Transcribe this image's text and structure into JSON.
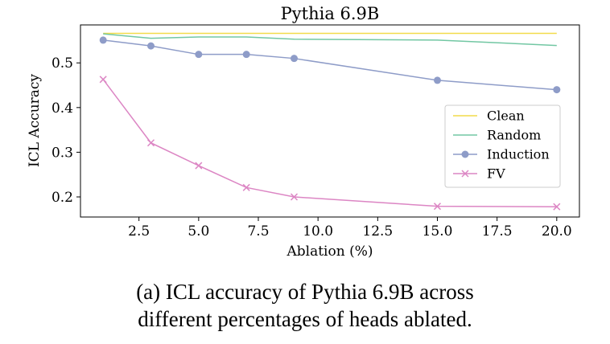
{
  "chart_data": {
    "type": "line",
    "title": "Pythia 6.9B",
    "xlabel": "Ablation (%)",
    "ylabel": "ICL Accuracy",
    "xlim": [
      0.05,
      20.95
    ],
    "ylim": [
      0.155,
      0.585
    ],
    "xticks": [
      2.5,
      5.0,
      7.5,
      10.0,
      12.5,
      15.0,
      17.5,
      20.0
    ],
    "xtick_labels": [
      "2.5",
      "5.0",
      "7.5",
      "10.0",
      "12.5",
      "15.0",
      "17.5",
      "20.0"
    ],
    "yticks": [
      0.2,
      0.3,
      0.4,
      0.5
    ],
    "ytick_labels": [
      "0.2",
      "0.3",
      "0.4",
      "0.5"
    ],
    "grid": false,
    "legend_position": "center-right",
    "series": [
      {
        "name": "Clean",
        "color": "#f2dc4a",
        "marker": "none",
        "x": [
          1,
          3,
          5,
          7,
          9,
          15,
          20
        ],
        "y": [
          0.566,
          0.566,
          0.566,
          0.566,
          0.566,
          0.566,
          0.566
        ]
      },
      {
        "name": "Random",
        "color": "#72c7a3",
        "marker": "none",
        "x": [
          1,
          3,
          5,
          7,
          9,
          15,
          20
        ],
        "y": [
          0.565,
          0.555,
          0.558,
          0.558,
          0.553,
          0.551,
          0.539
        ]
      },
      {
        "name": "Induction",
        "color": "#8e9cc8",
        "marker": "circle",
        "x": [
          1,
          3,
          5,
          7,
          9,
          15,
          20
        ],
        "y": [
          0.551,
          0.538,
          0.519,
          0.519,
          0.51,
          0.461,
          0.44
        ]
      },
      {
        "name": "FV",
        "color": "#dc86c4",
        "marker": "x",
        "x": [
          1,
          3,
          5,
          7,
          9,
          15,
          20
        ],
        "y": [
          0.463,
          0.321,
          0.27,
          0.221,
          0.2,
          0.179,
          0.178
        ]
      }
    ]
  },
  "caption": {
    "line1": "(a) ICL accuracy of Pythia 6.9B across",
    "line2": "different percentages of heads ablated."
  }
}
